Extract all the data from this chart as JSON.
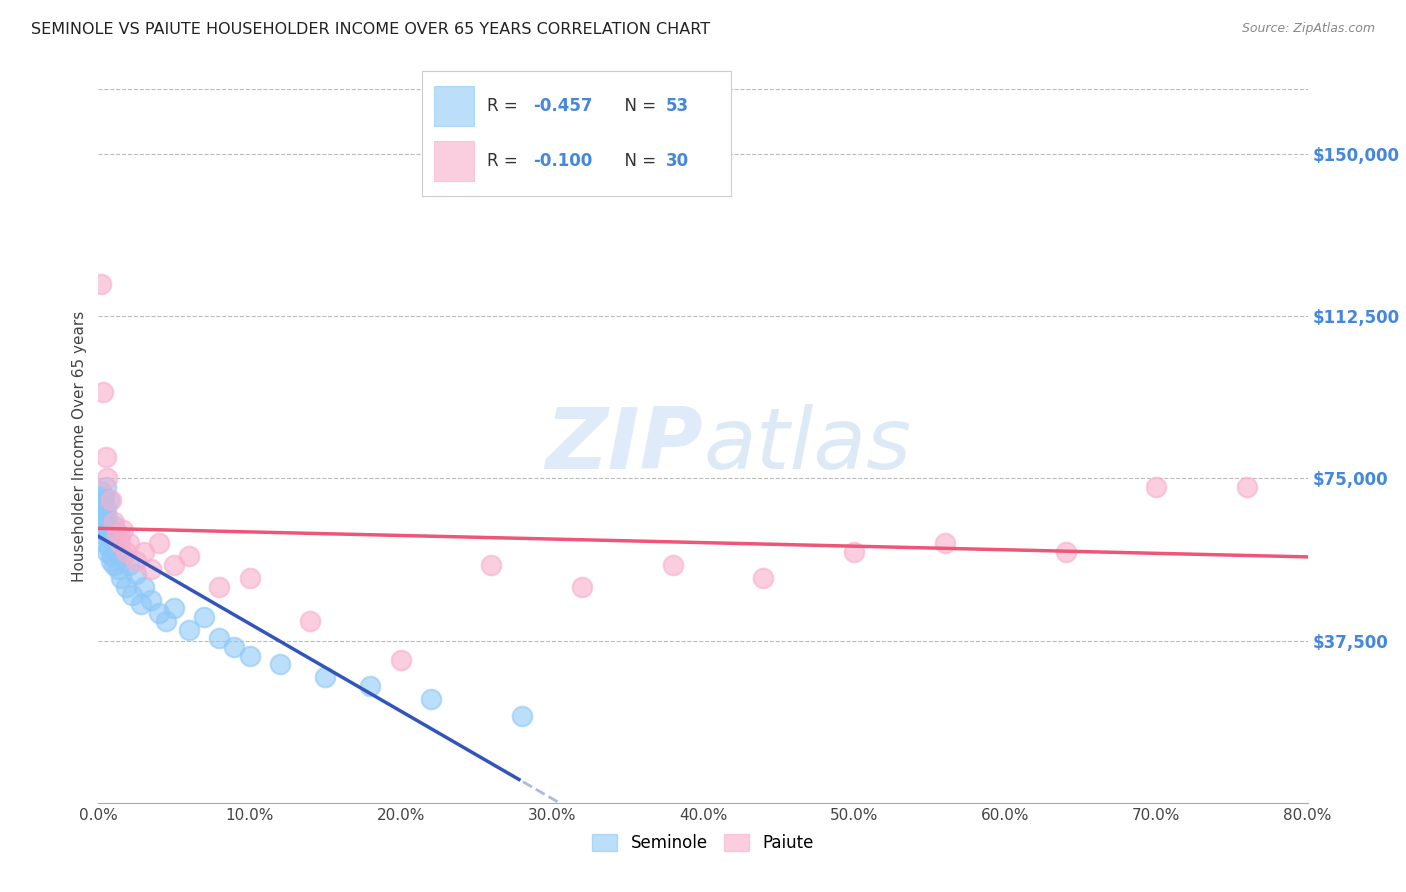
{
  "title": "SEMINOLE VS PAIUTE HOUSEHOLDER INCOME OVER 65 YEARS CORRELATION CHART",
  "source": "Source: ZipAtlas.com",
  "xlabel": "",
  "ylabel": "Householder Income Over 65 years",
  "xlim": [
    0.0,
    0.8
  ],
  "ylim": [
    0,
    165000
  ],
  "xtick_labels": [
    "0.0%",
    "10.0%",
    "20.0%",
    "30.0%",
    "40.0%",
    "50.0%",
    "60.0%",
    "70.0%",
    "80.0%"
  ],
  "xtick_values": [
    0.0,
    0.1,
    0.2,
    0.3,
    0.4,
    0.5,
    0.6,
    0.7,
    0.8
  ],
  "ytick_labels": [
    "$37,500",
    "$75,000",
    "$112,500",
    "$150,000"
  ],
  "ytick_values": [
    37500,
    75000,
    112500,
    150000
  ],
  "watermark_zip": "ZIP",
  "watermark_atlas": "atlas",
  "seminole_color": "#8EC8F8",
  "paiute_color": "#F9AECB",
  "seminole_line_color": "#3355BB",
  "paiute_line_color": "#EE5577",
  "background_color": "#FFFFFF",
  "grid_color": "#BBBBBB",
  "seminole_scatter_x": [
    0.001,
    0.002,
    0.002,
    0.003,
    0.003,
    0.003,
    0.004,
    0.004,
    0.004,
    0.004,
    0.004,
    0.005,
    0.005,
    0.005,
    0.005,
    0.006,
    0.006,
    0.006,
    0.007,
    0.007,
    0.007,
    0.008,
    0.008,
    0.009,
    0.009,
    0.01,
    0.01,
    0.011,
    0.012,
    0.013,
    0.014,
    0.015,
    0.016,
    0.018,
    0.02,
    0.022,
    0.025,
    0.028,
    0.03,
    0.035,
    0.04,
    0.045,
    0.05,
    0.06,
    0.07,
    0.08,
    0.09,
    0.1,
    0.12,
    0.15,
    0.18,
    0.22,
    0.28
  ],
  "seminole_scatter_y": [
    68000,
    72000,
    65000,
    70000,
    66000,
    63000,
    69000,
    64000,
    67000,
    62000,
    71000,
    65000,
    68000,
    60000,
    73000,
    64000,
    58000,
    66000,
    62000,
    59000,
    70000,
    56000,
    63000,
    61000,
    57000,
    64000,
    55000,
    60000,
    58000,
    54000,
    62000,
    52000,
    57000,
    50000,
    55000,
    48000,
    53000,
    46000,
    50000,
    47000,
    44000,
    42000,
    45000,
    40000,
    43000,
    38000,
    36000,
    34000,
    32000,
    29000,
    27000,
    24000,
    20000
  ],
  "paiute_scatter_x": [
    0.002,
    0.003,
    0.005,
    0.006,
    0.008,
    0.01,
    0.012,
    0.014,
    0.016,
    0.018,
    0.02,
    0.025,
    0.03,
    0.035,
    0.04,
    0.05,
    0.06,
    0.08,
    0.1,
    0.14,
    0.2,
    0.26,
    0.32,
    0.38,
    0.44,
    0.5,
    0.56,
    0.64,
    0.7,
    0.76
  ],
  "paiute_scatter_y": [
    120000,
    95000,
    80000,
    75000,
    70000,
    65000,
    62000,
    60000,
    63000,
    58000,
    60000,
    56000,
    58000,
    54000,
    60000,
    55000,
    57000,
    50000,
    52000,
    42000,
    33000,
    55000,
    50000,
    55000,
    52000,
    58000,
    60000,
    58000,
    73000,
    73000
  ]
}
